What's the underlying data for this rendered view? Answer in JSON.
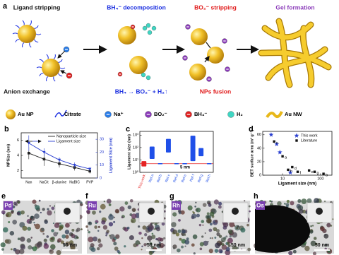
{
  "figure": {
    "panel_a": {
      "letter": "a",
      "steps": [
        "Ligand stripping",
        "BH₄⁻ decomposition",
        "BO₂⁻ stripping",
        "Gel formation"
      ],
      "sublabels": [
        "Anion exchange",
        "BH₄ → BO₂⁻ + H₂↑",
        "NPs fusion"
      ]
    },
    "legend": [
      "Au NP",
      "Citrate",
      "Na⁺",
      "BO₂⁻",
      "BH₄⁻",
      "H₂",
      "Au NW"
    ],
    "micrographs": [
      {
        "letter": "e",
        "element": "Pd",
        "scale": "50 nm"
      },
      {
        "letter": "f",
        "element": "Ru",
        "scale": "50 nm"
      },
      {
        "letter": "g",
        "element": "Rh",
        "scale": "50 nm"
      },
      {
        "letter": "h",
        "element": "Os",
        "scale": "50 nm"
      }
    ]
  },
  "chart_data": [
    {
      "panel": "b",
      "type": "line",
      "categories": [
        "Nan",
        "NaCit",
        "β-alanine",
        "NaBIC",
        "PVP"
      ],
      "ylabel": "NPSize (nm)",
      "y2label": "Ligament Size (nm)",
      "ylim": [
        1,
        7
      ],
      "yticks": [
        2,
        4,
        6
      ],
      "y2lim": [
        0,
        35
      ],
      "y2ticks": [
        0,
        10,
        20,
        30
      ],
      "series": [
        {
          "name": "Nanoparticle size",
          "color": "#222222",
          "values": [
            4.3,
            3.5,
            2.9,
            2.4,
            1.9
          ],
          "errors": [
            0.8,
            0.9,
            0.5,
            0.4,
            0.3
          ]
        },
        {
          "name": "Ligament size",
          "color": "#2a3fd0",
          "axis": "y2",
          "values": [
            27,
            20,
            14,
            10,
            7
          ],
          "errors": [
            6,
            3,
            2,
            2,
            1.5
          ]
        }
      ]
    },
    {
      "panel": "c",
      "type": "range-bar",
      "categories": [
        "This work",
        "Ref a",
        "Ref b",
        "Ref c",
        "Ref d",
        "Ref e",
        "Ref f",
        "Ref g",
        "Ref h"
      ],
      "low": [
        3,
        12,
        4.5,
        40,
        4.5,
        4.5,
        8,
        20,
        4.5
      ],
      "high": [
        8,
        120,
        5.5,
        500,
        5.5,
        5.5,
        900,
        90,
        5.5
      ],
      "colors": [
        "#e52222",
        "#1f4fe8",
        "#1f4fe8",
        "#1f4fe8",
        "#1f4fe8",
        "#1f4fe8",
        "#1f4fe8",
        "#1f4fe8",
        "#1f4fe8"
      ],
      "ylabel": "Ligament size (nm)",
      "log": true,
      "ylim": [
        1,
        2000
      ],
      "yticks": [
        {
          "value": 1,
          "label": "10⁰"
        },
        {
          "value": 10,
          "label": "10¹"
        },
        {
          "value": 100,
          "label": "10²"
        },
        {
          "value": 1000,
          "label": "10³"
        }
      ],
      "annotation": {
        "value": 5,
        "label": "5 nm"
      }
    },
    {
      "panel": "d",
      "type": "scatter",
      "xlabel": "Ligament size (nm)",
      "ylabel": "BET surface area (m² g⁻¹)",
      "xlog": true,
      "xlim": [
        3,
        200
      ],
      "xticks": [
        10,
        100
      ],
      "ylim": [
        0,
        65
      ],
      "yticks": [
        0,
        20,
        40,
        60
      ],
      "series": [
        {
          "name": "This work",
          "color": "#2a3fd0",
          "marker": "star",
          "x": [
            5,
            7,
            8.5,
            16
          ],
          "values": [
            60,
            46,
            34,
            4
          ]
        },
        {
          "name": "Literature",
          "color": "#111111",
          "marker": "square",
          "x": [
            6,
            10,
            14,
            18,
            25,
            50,
            70,
            120
          ],
          "values": [
            50,
            28,
            8,
            12,
            5,
            7,
            5,
            2
          ],
          "point_labels": [
            "c",
            "a",
            "h",
            "d",
            "f",
            "e",
            "g",
            "b"
          ]
        }
      ]
    }
  ]
}
